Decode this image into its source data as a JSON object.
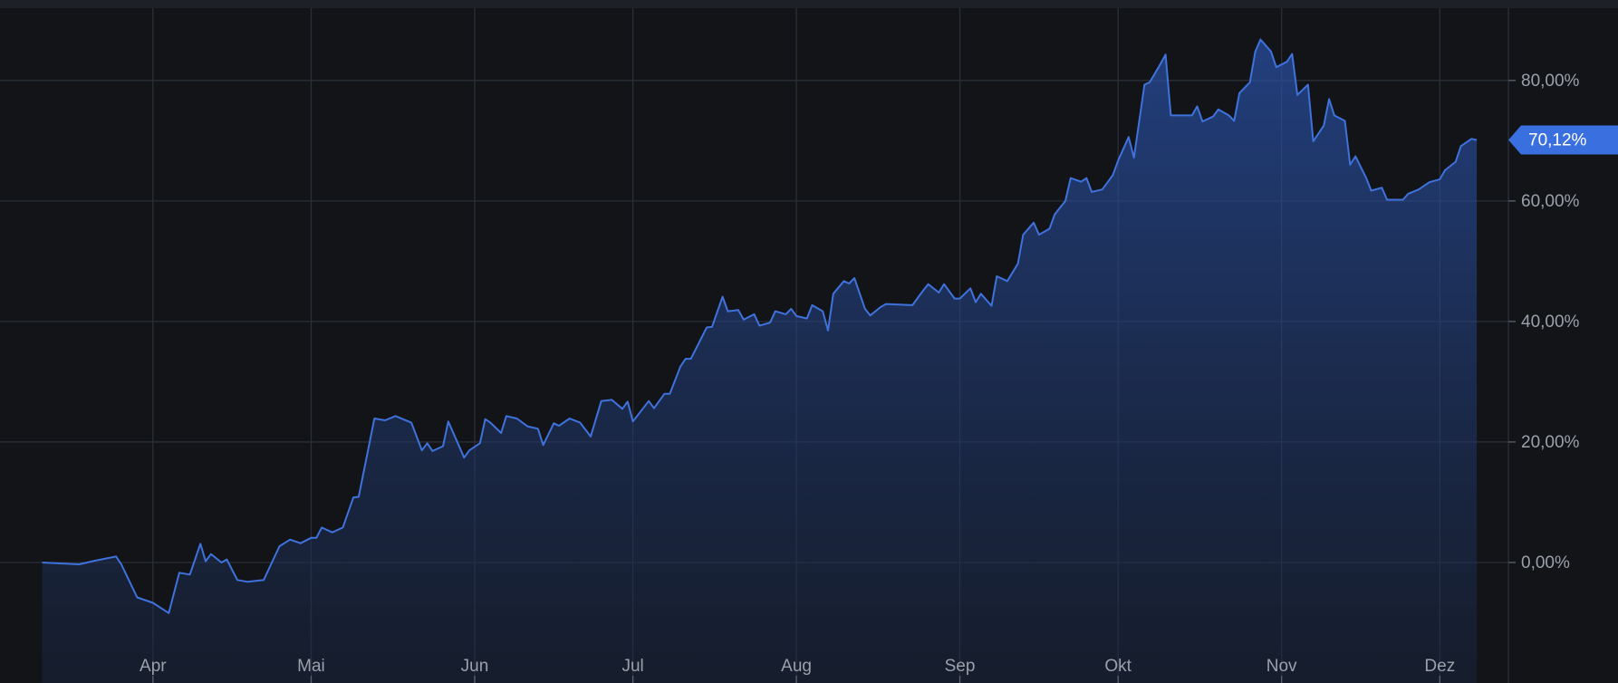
{
  "chart_data": {
    "type": "area",
    "x": [
      10,
      17,
      20,
      24,
      25,
      28,
      31,
      34,
      36,
      38,
      40,
      41,
      42,
      44,
      45,
      47,
      49,
      52,
      55,
      57,
      59,
      61,
      62,
      63,
      65,
      67,
      69,
      70,
      73,
      75,
      77,
      80,
      82,
      83,
      84,
      86,
      87,
      90,
      91,
      93,
      94,
      95,
      97,
      98,
      100,
      102,
      104,
      105,
      107,
      108,
      110,
      112,
      114,
      116,
      118,
      120,
      121,
      122,
      125,
      126,
      128,
      129,
      131,
      132,
      133,
      136,
      137,
      139,
      140,
      142,
      143,
      145,
      146,
      148,
      149,
      151,
      152,
      153,
      155,
      156,
      158,
      159,
      160,
      162,
      163,
      164,
      166,
      167,
      169,
      170,
      175,
      177,
      178,
      180,
      181,
      183,
      184,
      186,
      187,
      188,
      190,
      191,
      193,
      195,
      196,
      198,
      199,
      201,
      202,
      204,
      205,
      207,
      208,
      209,
      211,
      213,
      214,
      216,
      217,
      219,
      220,
      222,
      223,
      224,
      228,
      229,
      230,
      232,
      233,
      235,
      236,
      237,
      239,
      240,
      241,
      243,
      244,
      246,
      247,
      248,
      250,
      251,
      253,
      254,
      255,
      257,
      258,
      259,
      261,
      262,
      264,
      265,
      268,
      269,
      271,
      273,
      275,
      276,
      278,
      279,
      281,
      282
    ],
    "series": [
      {
        "color": "#3f72dc",
        "values": [
          0,
          -0.3,
          0.3,
          1,
          -0.3,
          -5.8,
          -6.7,
          -8.4,
          -1.7,
          -2,
          3.1,
          0.2,
          1.4,
          0,
          0.5,
          -2.9,
          -3.2,
          -2.9,
          2.7,
          3.8,
          3.2,
          4.1,
          4.1,
          5.8,
          5,
          5.8,
          10.8,
          10.9,
          23.9,
          23.6,
          24.3,
          23.2,
          18.6,
          19.8,
          18.5,
          19.3,
          23.4,
          17.4,
          18.6,
          19.8,
          23.8,
          23.2,
          21.5,
          24.3,
          23.9,
          22.6,
          22.2,
          19.5,
          23.1,
          22.7,
          23.9,
          23.2,
          20.9,
          26.8,
          27,
          25.5,
          26.7,
          23.4,
          26.8,
          25.6,
          28,
          28,
          32.5,
          33.8,
          33.8,
          39,
          39.1,
          44.1,
          41.7,
          41.9,
          40.3,
          41.2,
          39.3,
          39.8,
          41.7,
          41.2,
          42.1,
          40.9,
          40.5,
          42.7,
          41.7,
          38.5,
          44.6,
          46.7,
          46.3,
          47.2,
          42.1,
          41,
          42.4,
          42.9,
          42.7,
          45.1,
          46.2,
          44.8,
          46.2,
          43.8,
          43.8,
          45.5,
          43.2,
          44.6,
          42.6,
          47.5,
          46.7,
          49.6,
          54.4,
          56.4,
          54.4,
          55.4,
          57.8,
          60,
          63.8,
          63.2,
          63.8,
          61.5,
          61.9,
          64.3,
          66.7,
          70.6,
          67.2,
          79.3,
          79.7,
          82.7,
          84.3,
          74.2,
          74.2,
          75.7,
          73.2,
          74,
          75.2,
          74.2,
          73.3,
          77.9,
          79.7,
          84.8,
          86.8,
          84.8,
          82.2,
          83.1,
          84.4,
          77.6,
          79.3,
          69.9,
          72.5,
          76.9,
          74.2,
          73.3,
          66,
          67.4,
          63.9,
          61.7,
          62.2,
          60.2,
          60.2,
          61.2,
          61.9,
          63.1,
          63.6,
          65.1,
          66.5,
          69.1,
          70.3,
          70.12
        ]
      }
    ],
    "xlim": [
      2,
      288
    ],
    "xticks": [
      {
        "value": 31,
        "label": "Apr"
      },
      {
        "value": 61,
        "label": "Mai"
      },
      {
        "value": 92,
        "label": "Jun"
      },
      {
        "value": 122,
        "label": "Jul"
      },
      {
        "value": 153,
        "label": "Aug"
      },
      {
        "value": 184,
        "label": "Sep"
      },
      {
        "value": 214,
        "label": "Okt"
      },
      {
        "value": 245,
        "label": "Nov"
      },
      {
        "value": 275,
        "label": "Dez"
      }
    ],
    "ylim": [
      -20,
      92
    ],
    "yticks": [
      {
        "value": 0,
        "label": "0,00%"
      },
      {
        "value": 20,
        "label": "20,00%"
      },
      {
        "value": 40,
        "label": "40,00%"
      },
      {
        "value": 60,
        "label": "60,00%"
      },
      {
        "value": 80,
        "label": "80,00%"
      }
    ],
    "current_value": {
      "value": 70.12,
      "label": "70,12%"
    },
    "grid": true
  }
}
